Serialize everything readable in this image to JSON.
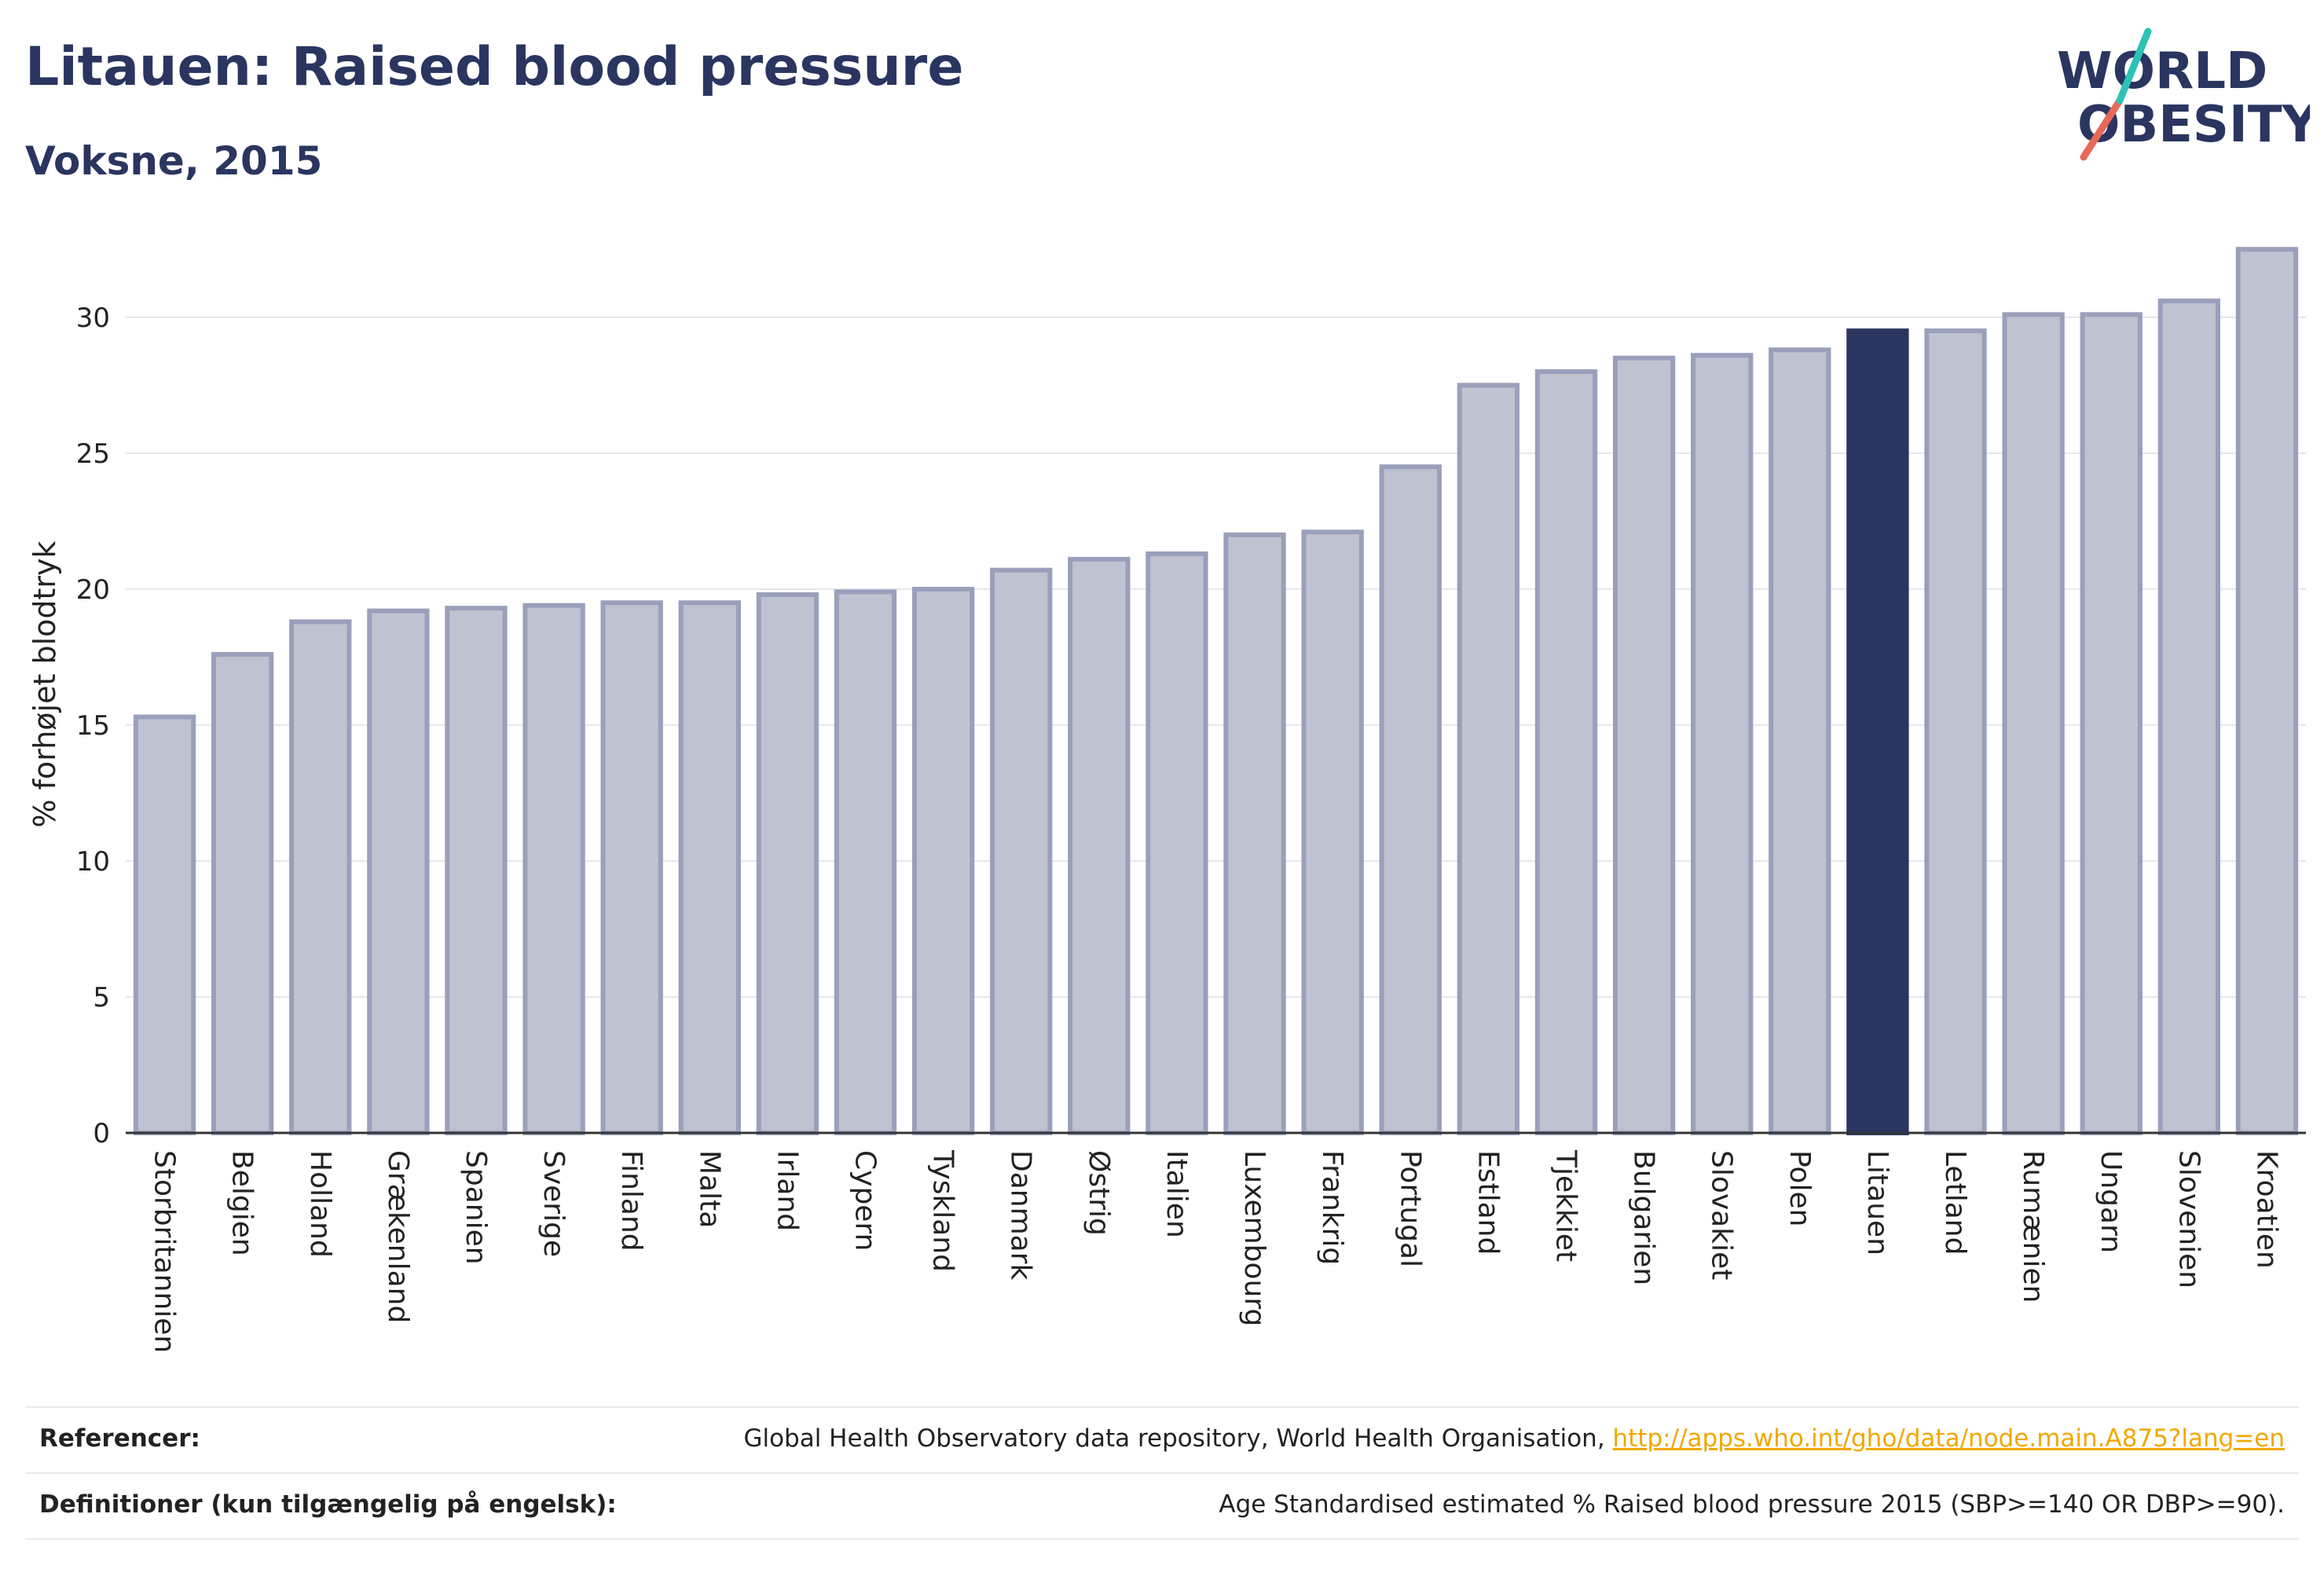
{
  "title": "Litauen: Raised blood pressure",
  "subtitle": "Voksne, 2015",
  "logo": {
    "line1": "WORLD",
    "line2": "OBESITY"
  },
  "colors": {
    "bar": "#bfc2d0",
    "bar_stroke": "#9aa0bb",
    "highlight": "#2a3560",
    "grid": "#e6e6ec",
    "axis": "#333333"
  },
  "chart_data": {
    "type": "bar",
    "ylabel": "% forhøjet blodtryk",
    "ylim": [
      0,
      33
    ],
    "yticks": [
      0,
      5,
      10,
      15,
      20,
      25,
      30
    ],
    "grid": true,
    "highlight": "Litauen",
    "categories": [
      "Storbritannien",
      "Belgien",
      "Holland",
      "Grækenland",
      "Spanien",
      "Sverige",
      "Finland",
      "Malta",
      "Irland",
      "Cypern",
      "Tyskland",
      "Danmark",
      "Østrig",
      "Italien",
      "Luxembourg",
      "Frankrig",
      "Portugal",
      "Estland",
      "Tjekkiet",
      "Bulgarien",
      "Slovakiet",
      "Polen",
      "Litauen",
      "Letland",
      "Rumænien",
      "Ungarn",
      "Slovenien",
      "Kroatien"
    ],
    "values": [
      15.3,
      17.6,
      18.8,
      19.2,
      19.3,
      19.4,
      19.5,
      19.5,
      19.8,
      19.9,
      20.0,
      20.7,
      21.1,
      21.3,
      22.0,
      22.1,
      24.5,
      27.5,
      28.0,
      28.5,
      28.6,
      28.8,
      29.5,
      29.5,
      30.1,
      30.1,
      30.6,
      32.5
    ]
  },
  "footer": {
    "references_label": "Referencer:",
    "references_text": "Global Health Observatory data repository, World Health Organisation, ",
    "references_link": "http://apps.who.int/gho/data/node.main.A875?lang=en",
    "definitions_label": "Definitioner (kun tilgængelig på engelsk):",
    "definitions_text": "Age Standardised estimated % Raised blood pressure 2015 (SBP>=140 OR DBP>=90)."
  }
}
